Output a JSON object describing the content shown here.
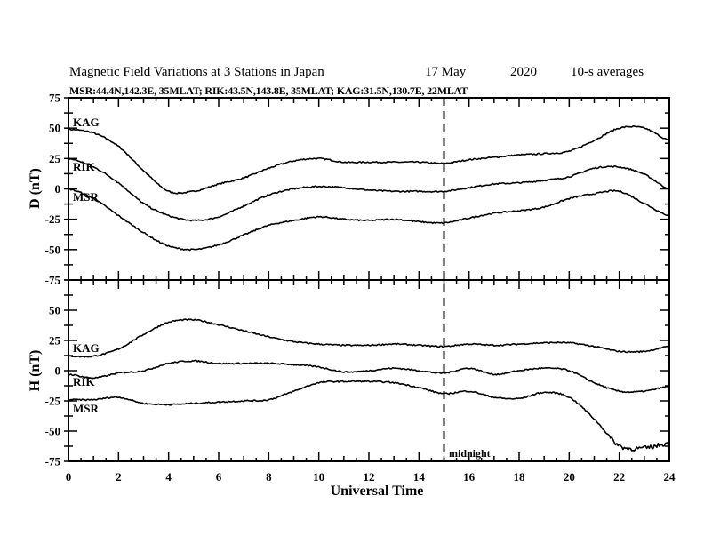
{
  "header": {
    "title": "Magnetic Field Variations at 3 Stations in Japan",
    "date": "17 May",
    "year": "2020",
    "averaging": "10-s averages",
    "stations": "MSR:44.4N,142.3E, 35MLAT;  RIK:43.5N,143.8E, 35MLAT;  KAG:31.5N,130.7E, 22MLAT"
  },
  "chart_data": [
    {
      "type": "line",
      "panel": "top",
      "ylabel": "D (nT)",
      "xlabel": "",
      "xlim": [
        0,
        24
      ],
      "ylim": [
        -75,
        75
      ],
      "yticks": [
        "75",
        "50",
        "25",
        "0",
        "-25",
        "-50",
        "-75"
      ],
      "ytick_values": [
        75,
        50,
        25,
        0,
        -25,
        -50,
        -75
      ],
      "x": [
        0,
        1,
        2,
        3,
        4,
        5,
        6,
        7,
        8,
        9,
        10,
        11,
        12,
        13,
        14,
        15,
        16,
        17,
        18,
        19,
        20,
        21,
        22,
        23,
        24
      ],
      "series": [
        {
          "name": "KAG",
          "values": [
            49,
            46,
            35,
            15,
            -2,
            -2,
            4,
            9,
            17,
            23,
            25,
            22,
            22,
            22,
            22,
            21,
            24,
            26,
            28,
            29,
            31,
            40,
            50,
            50,
            40
          ]
        },
        {
          "name": "RIK",
          "values": [
            25,
            18,
            5,
            -12,
            -22,
            -26,
            -23,
            -14,
            -5,
            0,
            2,
            1,
            -1,
            -2,
            -2,
            -2,
            1,
            4,
            5,
            7,
            10,
            17,
            18,
            12,
            0
          ]
        },
        {
          "name": "MSR",
          "values": [
            0,
            -8,
            -22,
            -36,
            -47,
            -50,
            -46,
            -38,
            -30,
            -26,
            -23,
            -25,
            -26,
            -25,
            -27,
            -28,
            -24,
            -20,
            -18,
            -15,
            -8,
            -4,
            -2,
            -12,
            -22
          ]
        }
      ]
    },
    {
      "type": "line",
      "panel": "bottom",
      "ylabel": "H (nT)",
      "xlabel": "Universal Time",
      "xlim": [
        0,
        24
      ],
      "ylim": [
        -75,
        75
      ],
      "yticks": [
        "50",
        "25",
        "0",
        "-25",
        "-50",
        "-75"
      ],
      "ytick_values": [
        50,
        25,
        0,
        -25,
        -50,
        -75
      ],
      "xticks": [
        "0",
        "2",
        "4",
        "6",
        "8",
        "10",
        "12",
        "14",
        "16",
        "18",
        "20",
        "22",
        "24"
      ],
      "xtick_values": [
        0,
        2,
        4,
        6,
        8,
        10,
        12,
        14,
        16,
        18,
        20,
        22,
        24
      ],
      "x": [
        0,
        1,
        2,
        3,
        4,
        5,
        6,
        7,
        8,
        9,
        10,
        11,
        12,
        13,
        14,
        15,
        16,
        17,
        18,
        19,
        20,
        21,
        22,
        23,
        24
      ],
      "series": [
        {
          "name": "KAG",
          "values": [
            12,
            12,
            18,
            30,
            40,
            42,
            38,
            33,
            28,
            24,
            22,
            21,
            21,
            22,
            21,
            20,
            22,
            21,
            22,
            23,
            23,
            20,
            16,
            16,
            20
          ]
        },
        {
          "name": "RIK",
          "values": [
            -3,
            -6,
            -2,
            0,
            6,
            8,
            6,
            6,
            6,
            5,
            3,
            -1,
            0,
            2,
            0,
            -2,
            2,
            -3,
            0,
            2,
            0,
            -10,
            -17,
            -17,
            -13
          ]
        },
        {
          "name": "MSR",
          "values": [
            -24,
            -24,
            -22,
            -27,
            -28,
            -27,
            -26,
            -25,
            -24,
            -17,
            -10,
            -9,
            -9,
            -10,
            -14,
            -19,
            -17,
            -22,
            -23,
            -18,
            -22,
            -40,
            -62,
            -64,
            -60
          ]
        }
      ],
      "annotations": [
        {
          "text": "midnight",
          "x": 15
        }
      ]
    }
  ],
  "midnight_ut": 15,
  "colors": {
    "line": "#000000",
    "background": "#ffffff"
  }
}
